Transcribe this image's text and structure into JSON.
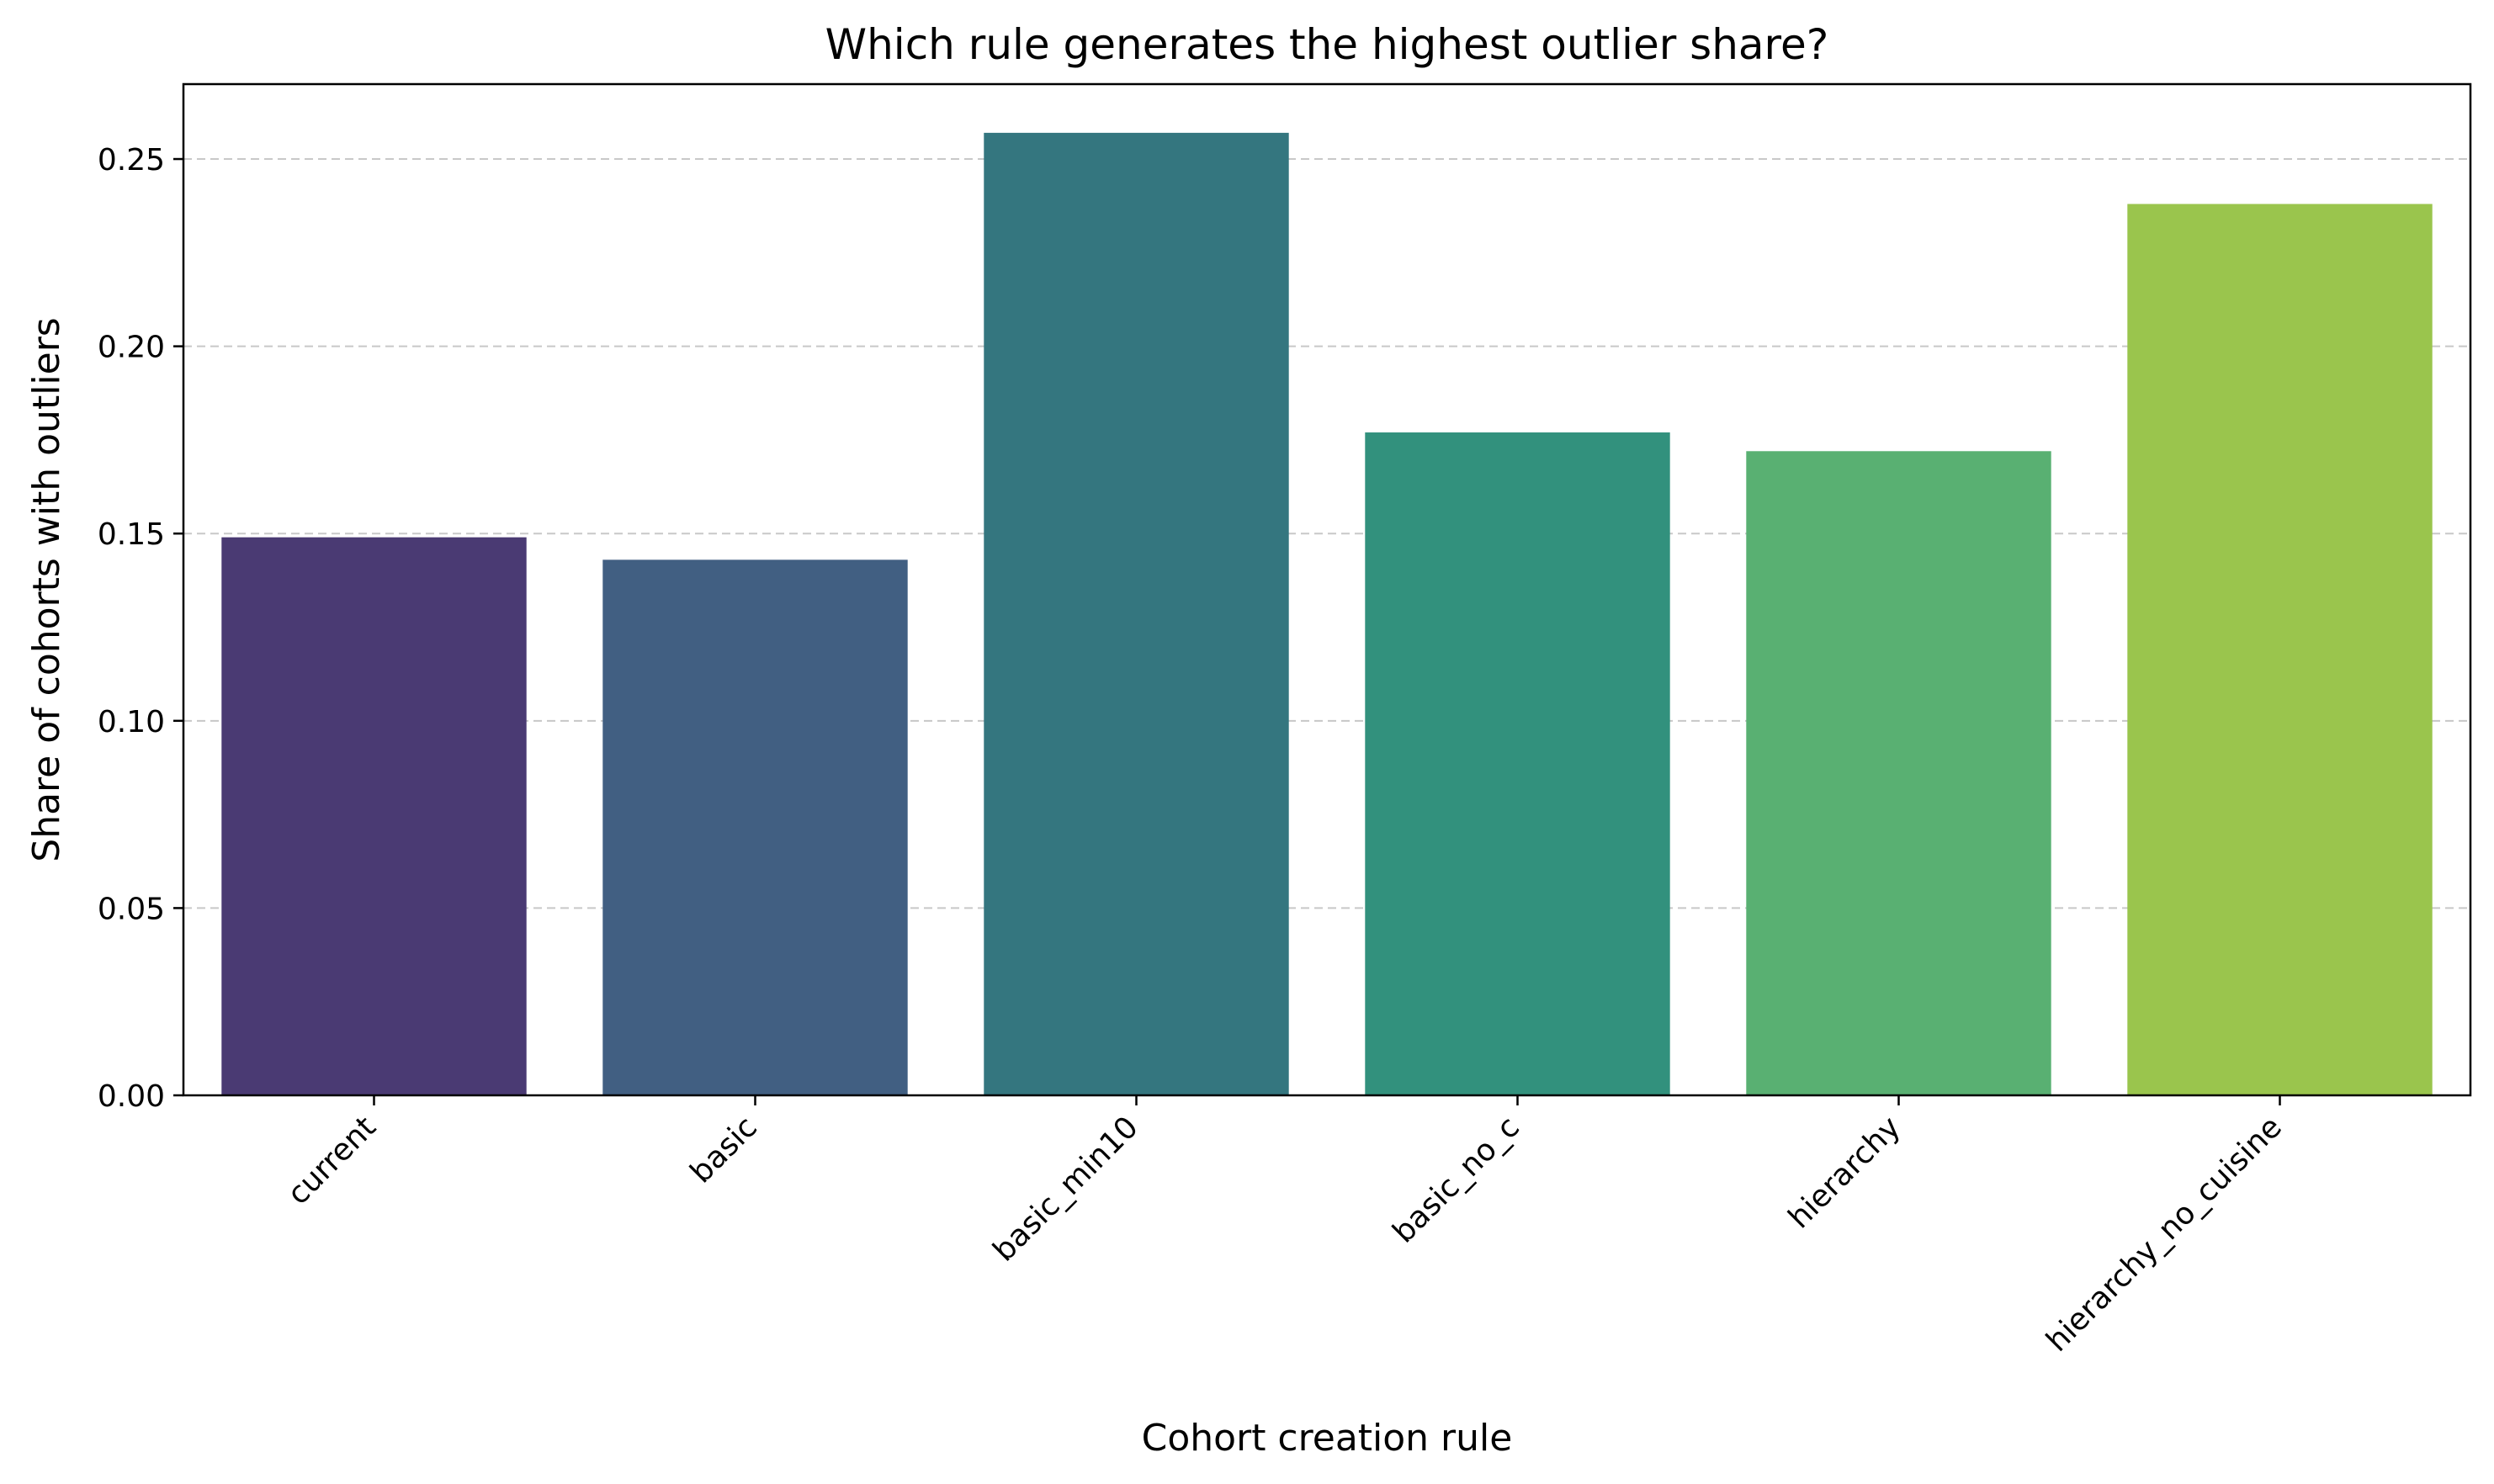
{
  "chart_data": {
    "type": "bar",
    "title": "Which rule generates the highest outlier share?",
    "xlabel": "Cohort creation rule",
    "ylabel": "Share of cohorts with outliers",
    "categories": [
      "current",
      "basic",
      "basic_min10",
      "basic_no_c",
      "hierarchy",
      "hierarchy_no_cuisine"
    ],
    "values": [
      0.149,
      0.143,
      0.257,
      0.177,
      0.172,
      0.238
    ],
    "colors": [
      "#4a3a73",
      "#415f82",
      "#34767f",
      "#32917d",
      "#59b072",
      "#9ac54d"
    ],
    "ylim": [
      0,
      0.27
    ],
    "yticks": [
      0.0,
      0.05,
      0.1,
      0.15,
      0.2,
      0.25
    ],
    "ytick_labels": [
      "0.00",
      "0.05",
      "0.10",
      "0.15",
      "0.20",
      "0.25"
    ],
    "grid": "y-dashed",
    "legend": "none"
  }
}
